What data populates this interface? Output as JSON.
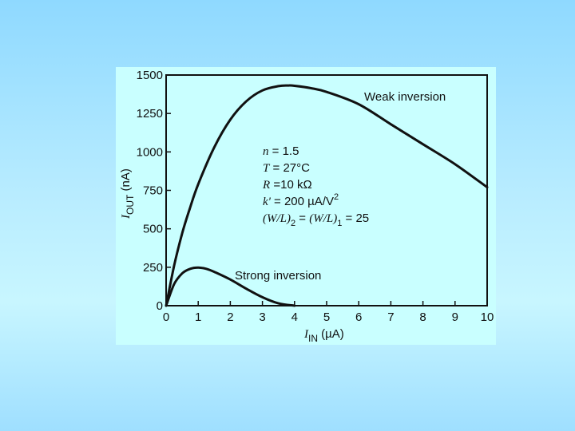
{
  "chart_data": {
    "type": "line",
    "title": "",
    "xlabel": {
      "main": "I",
      "sub": "IN",
      "unit": " (µA)"
    },
    "ylabel": {
      "main": "I",
      "sub": "OUT",
      "unit": " (nA)"
    },
    "xlim": [
      0,
      10
    ],
    "ylim": [
      0,
      1500
    ],
    "x_ticks": [
      0,
      1,
      2,
      3,
      4,
      5,
      6,
      7,
      8,
      9,
      10
    ],
    "y_ticks": [
      0,
      250,
      500,
      750,
      1000,
      1250,
      1500
    ],
    "grid": false,
    "series": [
      {
        "name": "Weak inversion",
        "x": [
          0,
          0.25,
          0.5,
          0.75,
          1,
          1.5,
          2,
          2.5,
          3,
          3.5,
          3.8,
          4,
          4.5,
          5,
          6,
          7,
          8,
          9,
          10
        ],
        "y": [
          0,
          260,
          470,
          640,
          790,
          1030,
          1210,
          1330,
          1400,
          1428,
          1432,
          1430,
          1415,
          1390,
          1310,
          1180,
          1050,
          920,
          770
        ]
      },
      {
        "name": "Strong inversion",
        "x": [
          0,
          0.25,
          0.5,
          0.75,
          1,
          1.25,
          1.5,
          2,
          2.5,
          3,
          3.5,
          4
        ],
        "y": [
          0,
          140,
          210,
          240,
          248,
          240,
          220,
          170,
          110,
          55,
          15,
          0
        ]
      }
    ],
    "annotations": {
      "series_labels": [
        "Weak inversion",
        "Strong inversion"
      ],
      "params": [
        {
          "sym": "n",
          "text": " = 1.5"
        },
        {
          "sym": "T",
          "text": " = 27°C"
        },
        {
          "sym": "R",
          "text": " =10 kΩ"
        },
        {
          "sym": "k'",
          "text": " = 200 µA/V",
          "sup": "2"
        },
        {
          "sym": "(W/L)",
          "sub": "2",
          "text": " = ",
          "sym2": "(W/L)",
          "sub2": "1",
          "text2": " = 25"
        }
      ]
    }
  }
}
